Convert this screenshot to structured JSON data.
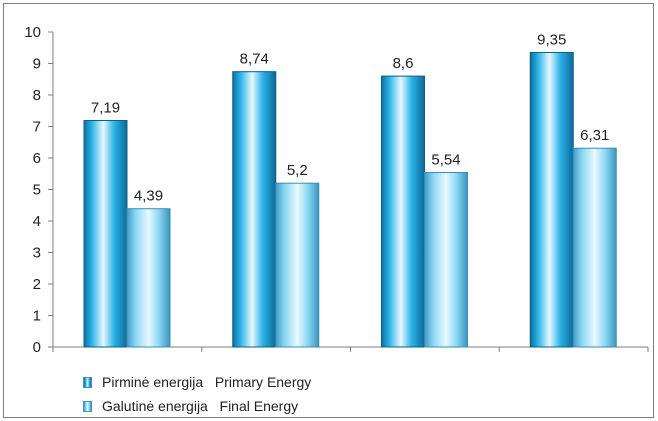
{
  "chart_data": {
    "type": "bar",
    "categories": [
      "",
      "",
      "",
      ""
    ],
    "series": [
      {
        "name": "Pirminė energija   Primary Energy",
        "values": [
          7.19,
          8.74,
          8.6,
          9.35
        ],
        "labels": [
          "7,19",
          "8,74",
          "8,6",
          "9,35"
        ],
        "color": "#1aa3d9"
      },
      {
        "name": "Galutinė energija   Final Energy",
        "values": [
          4.39,
          5.2,
          5.54,
          6.31
        ],
        "labels": [
          "4,39",
          "5,2",
          "5,54",
          "6,31"
        ],
        "color": "#79cdef"
      }
    ],
    "yticks": [
      "0",
      "1",
      "2",
      "3",
      "4",
      "5",
      "6",
      "7",
      "8",
      "9",
      "10"
    ],
    "ylim": [
      0,
      10
    ],
    "grid": false,
    "legend_position": "bottom-left",
    "title": "",
    "xlabel": "",
    "ylabel": ""
  },
  "legend": {
    "primary_label": "Pirminė energija   Primary Energy",
    "final_label": "Galutinė energija   Final Energy"
  }
}
